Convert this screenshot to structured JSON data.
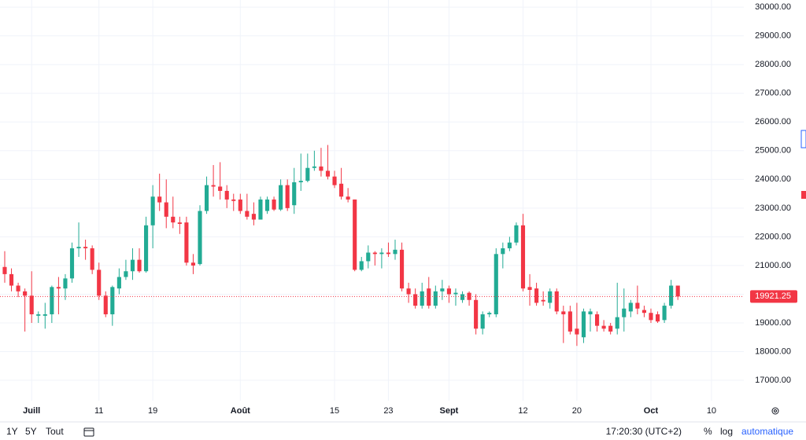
{
  "chart_data": {
    "type": "candlestick",
    "colors": {
      "up": "#22ab94",
      "down": "#f23645"
    },
    "xlim": [
      -0.7,
      109.8
    ],
    "xticks": [
      {
        "value": 4,
        "label": "Juill"
      },
      {
        "value": 14,
        "label": "11"
      },
      {
        "value": 22,
        "label": "19"
      },
      {
        "value": 35,
        "label": "Août"
      },
      {
        "value": 49,
        "label": "15"
      },
      {
        "value": 57,
        "label": "23"
      },
      {
        "value": 66,
        "label": "Sept"
      },
      {
        "value": 77,
        "label": "12"
      },
      {
        "value": 85,
        "label": "20"
      },
      {
        "value": 96,
        "label": "Oct"
      },
      {
        "value": 105,
        "label": "10"
      }
    ],
    "ylim": [
      16290,
      30250
    ],
    "yticks": [
      {
        "value": 17000,
        "label": "17000.00"
      },
      {
        "value": 18000,
        "label": "18000.00"
      },
      {
        "value": 19000,
        "label": "19000.00"
      },
      {
        "value": 20000,
        "label": "20000.00"
      },
      {
        "value": 21000,
        "label": "21000.00"
      },
      {
        "value": 22000,
        "label": "22000.00"
      },
      {
        "value": 23000,
        "label": "23000.00"
      },
      {
        "value": 24000,
        "label": "24000.00"
      },
      {
        "value": 25000,
        "label": "25000.00"
      },
      {
        "value": 26000,
        "label": "26000.00"
      },
      {
        "value": 27000,
        "label": "27000.00"
      },
      {
        "value": 28000,
        "label": "28000.00"
      },
      {
        "value": 29000,
        "label": "29000.00"
      },
      {
        "value": 30000,
        "label": "30000.00"
      }
    ],
    "grid": true,
    "last_price": 19921.25,
    "open": [
      20950,
      20700,
      20300,
      20100,
      19950,
      19250,
      19250,
      19300,
      20250,
      20200,
      20550,
      21600,
      21650,
      21600,
      20850,
      19950,
      19300,
      20200,
      20600,
      20800,
      21200,
      20800,
      22400,
      23400,
      23200,
      22700,
      22500,
      22500,
      21100,
      21050,
      22900,
      23800,
      23750,
      23600,
      23300,
      23300,
      22900,
      22800,
      22600,
      22900,
      23300,
      22950,
      23800,
      23100,
      23900,
      23950,
      24400,
      24450,
      24300,
      24100,
      23850,
      23400,
      23300,
      20850,
      21150,
      21450,
      21400,
      21450,
      21400,
      21550,
      20200,
      20000,
      19600,
      20200,
      19600,
      20100,
      20200,
      20000,
      19800,
      20050,
      19800,
      18800,
      19300,
      19300,
      21400,
      21600,
      21800,
      22400,
      20250,
      20200,
      19800,
      19700,
      20100,
      19400,
      19400,
      18800,
      18500,
      19300,
      19300,
      18900,
      18900,
      18800,
      19200,
      19400,
      19700,
      19450,
      19350,
      19300,
      19100,
      19600,
      20300
    ],
    "high": [
      21500,
      20900,
      20400,
      20200,
      20800,
      19400,
      19700,
      20300,
      20600,
      20700,
      21800,
      22500,
      21900,
      21700,
      21100,
      20100,
      20300,
      20900,
      21200,
      21600,
      21600,
      22700,
      23800,
      24200,
      24000,
      23400,
      22700,
      22700,
      21400,
      23100,
      24100,
      24500,
      24600,
      23800,
      23500,
      23500,
      23500,
      23200,
      23400,
      23400,
      23400,
      24000,
      24000,
      24400,
      24900,
      24900,
      25000,
      25100,
      25200,
      24300,
      24400,
      23700,
      23300,
      21300,
      21700,
      21500,
      21600,
      21800,
      21900,
      21800,
      20400,
      20200,
      20400,
      20600,
      20300,
      20500,
      20300,
      20200,
      20100,
      20100,
      20000,
      19400,
      19400,
      21600,
      21800,
      22000,
      22500,
      22800,
      20700,
      20400,
      20100,
      20200,
      20200,
      19600,
      19600,
      19700,
      19500,
      19500,
      19400,
      19100,
      19000,
      20400,
      20200,
      19800,
      20300,
      19600,
      19500,
      19400,
      19700,
      20500,
      20300
    ],
    "low": [
      20400,
      20100,
      19900,
      18700,
      19000,
      19000,
      18800,
      19000,
      19300,
      19800,
      20400,
      21300,
      21200,
      20700,
      19800,
      19200,
      18900,
      20000,
      20500,
      20500,
      20750,
      20750,
      21600,
      22900,
      22300,
      22300,
      22100,
      21000,
      20700,
      21000,
      22800,
      23400,
      23300,
      23000,
      22900,
      22800,
      22600,
      22400,
      22600,
      22800,
      22900,
      22900,
      22900,
      22800,
      23600,
      23900,
      24300,
      24100,
      24000,
      23700,
      23300,
      23200,
      20800,
      20800,
      20900,
      21000,
      20900,
      21300,
      21200,
      20100,
      19700,
      19500,
      19500,
      19500,
      19500,
      19800,
      19700,
      19600,
      19700,
      19600,
      18600,
      18600,
      19200,
      19200,
      20900,
      21500,
      21700,
      20100,
      19600,
      19600,
      19600,
      19500,
      19300,
      18300,
      18600,
      18200,
      18300,
      18700,
      18700,
      18700,
      18600,
      18600,
      18700,
      19200,
      19300,
      19200,
      19000,
      19000,
      19000,
      19500,
      19800
    ],
    "close": [
      20700,
      20300,
      20100,
      19950,
      19300,
      19300,
      19300,
      20250,
      20200,
      20550,
      21600,
      21650,
      21600,
      20850,
      19950,
      19300,
      20250,
      20600,
      20800,
      21200,
      20800,
      22400,
      23400,
      23200,
      22700,
      22500,
      22450,
      21100,
      21000,
      22900,
      23800,
      23750,
      23600,
      23300,
      23250,
      22900,
      22700,
      22600,
      23300,
      23300,
      22950,
      23800,
      23000,
      23900,
      23950,
      24400,
      24450,
      24300,
      24100,
      23800,
      23400,
      23300,
      20850,
      21150,
      21450,
      21400,
      21450,
      21400,
      21550,
      20200,
      20000,
      19600,
      20100,
      19600,
      20100,
      20200,
      20000,
      20050,
      20000,
      19800,
      18800,
      19300,
      19350,
      21400,
      21600,
      21800,
      22400,
      20200,
      20150,
      19700,
      19750,
      20100,
      19400,
      19300,
      18700,
      18600,
      19400,
      19400,
      18900,
      18800,
      18700,
      19200,
      19500,
      19700,
      19500,
      19350,
      19100,
      19050,
      19600,
      20300,
      19921.25
    ]
  },
  "toolbar": {
    "ranges": [
      "1Y",
      "5Y",
      "Tout"
    ],
    "time": "17:20:30 (UTC+2)",
    "options": [
      "%",
      "log",
      "automatique"
    ]
  }
}
